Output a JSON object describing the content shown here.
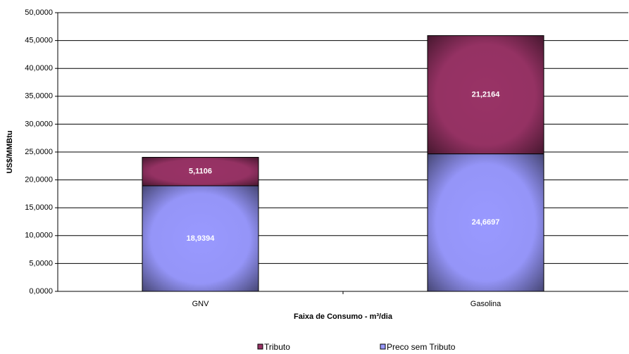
{
  "chart_data": {
    "type": "stacked-bar",
    "y_label": "US$/MMBtu",
    "x_label": "Faixa de Consumo  - m³/dia",
    "categories": [
      "GNV",
      "Gasolina"
    ],
    "series": [
      {
        "name": "Preco sem Tributo",
        "color": "#9999ff",
        "values": [
          18.9394,
          24.6697
        ],
        "value_labels": [
          "18,9394",
          "24,6697"
        ]
      },
      {
        "name": "Tributo",
        "color": "#993366",
        "values": [
          5.1106,
          21.2164
        ],
        "value_labels": [
          "5,1106",
          "21,2164"
        ]
      }
    ],
    "ylim": [
      0,
      50
    ],
    "yticks": [
      {
        "value": 0,
        "label": "0,0000"
      },
      {
        "value": 5,
        "label": "5,0000"
      },
      {
        "value": 10,
        "label": "10,0000"
      },
      {
        "value": 15,
        "label": "15,0000"
      },
      {
        "value": 20,
        "label": "20,0000"
      },
      {
        "value": 25,
        "label": "25,0000"
      },
      {
        "value": 30,
        "label": "30,0000"
      },
      {
        "value": 35,
        "label": "35,0000"
      },
      {
        "value": 40,
        "label": "40,0000"
      },
      {
        "value": 45,
        "label": "45,0000"
      },
      {
        "value": 50,
        "label": "50,0000"
      }
    ],
    "grid": true
  }
}
